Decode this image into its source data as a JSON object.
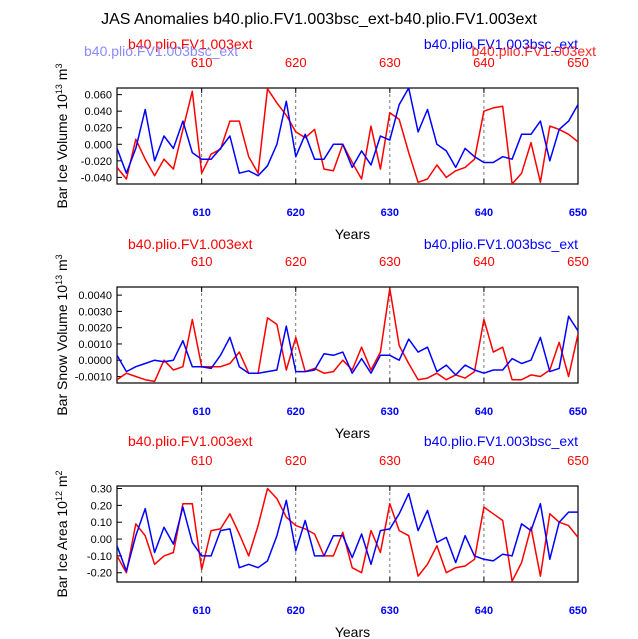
{
  "title": "JAS Anomalies b40.plio.FV1.003bsc_ext-b40.plio.FV1.003ext",
  "colors": {
    "red": "#ff0000",
    "blue": "#0000ff",
    "axis": "#000000",
    "ghost": "#8a8aff"
  },
  "header_overlap": {
    "ghost_left": "b40.plio.FV1.003bsc_ext",
    "ghost_right": "b40.plio.FV1.003ext"
  },
  "chart_data": [
    {
      "type": "line",
      "name": "ice-volume",
      "left_label": "b40.plio.FV1.003ext",
      "right_label": "b40.plio.FV1.003bsc_ext",
      "ylabel": "Bar Ice Volume 10^13 m^3",
      "ylabel_main": "Bar Ice Volume 10",
      "ylabel_sup1": "13",
      "ylabel_mid": " m",
      "ylabel_sup2": "3",
      "xlabel": "Years",
      "xlim": [
        601,
        650
      ],
      "ylim": [
        -0.048,
        0.068
      ],
      "yticks": [
        0.06,
        0.04,
        0.02,
        0.0,
        -0.02,
        -0.04
      ],
      "ytick_labels": [
        "0.060",
        "0.040",
        "0.020",
        "0.000",
        "-0.020",
        "-0.040"
      ],
      "xticks": [
        610,
        620,
        630,
        640,
        650
      ],
      "xtick_labels": [
        "610",
        "620",
        "630",
        "640",
        "650"
      ],
      "vlines": [
        610,
        620,
        630,
        640
      ],
      "x": [
        601,
        602,
        603,
        604,
        605,
        606,
        607,
        608,
        609,
        610,
        611,
        612,
        613,
        614,
        615,
        616,
        617,
        618,
        619,
        620,
        621,
        622,
        623,
        624,
        625,
        626,
        627,
        628,
        629,
        630,
        631,
        632,
        633,
        634,
        635,
        636,
        637,
        638,
        639,
        640,
        641,
        642,
        643,
        644,
        645,
        646,
        647,
        648,
        649,
        650
      ],
      "series": [
        {
          "name": "b40.plio.FV1.003ext",
          "color": "red",
          "values": [
            -0.028,
            -0.042,
            0.006,
            -0.018,
            -0.038,
            -0.018,
            -0.03,
            0.018,
            0.064,
            -0.035,
            -0.012,
            -0.006,
            0.028,
            0.028,
            -0.015,
            -0.035,
            0.067,
            0.05,
            0.035,
            0.015,
            0.008,
            0.018,
            -0.03,
            -0.032,
            0.0,
            -0.022,
            -0.042,
            0.022,
            -0.03,
            0.038,
            0.03,
            -0.01,
            -0.046,
            -0.042,
            -0.025,
            -0.04,
            -0.032,
            -0.028,
            -0.018,
            0.04,
            0.044,
            0.046,
            -0.048,
            -0.035,
            0.002,
            -0.046,
            0.022,
            0.018,
            0.012,
            0.003
          ]
        },
        {
          "name": "b40.plio.FV1.003bsc_ext",
          "color": "blue",
          "values": [
            -0.005,
            -0.035,
            -0.005,
            0.042,
            -0.02,
            0.01,
            -0.005,
            0.028,
            -0.01,
            -0.018,
            -0.018,
            -0.005,
            0.01,
            -0.035,
            -0.032,
            -0.038,
            -0.026,
            0.0,
            0.052,
            -0.015,
            0.012,
            -0.018,
            -0.018,
            0.0,
            0.0,
            -0.028,
            -0.008,
            -0.025,
            0.01,
            0.005,
            0.048,
            0.068,
            0.015,
            0.042,
            0.0,
            -0.008,
            -0.028,
            -0.005,
            -0.015,
            -0.022,
            -0.022,
            -0.015,
            -0.018,
            0.012,
            0.012,
            0.028,
            -0.02,
            0.018,
            0.028,
            0.048
          ]
        }
      ]
    },
    {
      "type": "line",
      "name": "snow-volume",
      "left_label": "b40.plio.FV1.003ext",
      "right_label": "b40.plio.FV1.003bsc_ext",
      "ylabel": "Bar Snow Volume 10^13 m^3",
      "ylabel_main": "Bar Snow Volume 10",
      "ylabel_sup1": "13",
      "ylabel_mid": " m",
      "ylabel_sup2": "3",
      "xlabel": "Years",
      "xlim": [
        601,
        650
      ],
      "ylim": [
        -0.0014,
        0.0045
      ],
      "yticks": [
        0.004,
        0.003,
        0.002,
        0.001,
        0.0,
        -0.001
      ],
      "ytick_labels": [
        "0.0040",
        "0.0030",
        "0.0020",
        "0.0010",
        "0.0000",
        "-0.0010"
      ],
      "xticks": [
        610,
        620,
        630,
        640,
        650
      ],
      "xtick_labels": [
        "610",
        "620",
        "630",
        "640",
        "650"
      ],
      "vlines": [
        610,
        620,
        630,
        640
      ],
      "x": [
        601,
        602,
        603,
        604,
        605,
        606,
        607,
        608,
        609,
        610,
        611,
        612,
        613,
        614,
        615,
        616,
        617,
        618,
        619,
        620,
        621,
        622,
        623,
        624,
        625,
        626,
        627,
        628,
        629,
        630,
        631,
        632,
        633,
        634,
        635,
        636,
        637,
        638,
        639,
        640,
        641,
        642,
        643,
        644,
        645,
        646,
        647,
        648,
        649,
        650
      ],
      "series": [
        {
          "name": "b40.plio.FV1.003ext",
          "color": "red",
          "values": [
            -0.0012,
            -0.0008,
            -0.001,
            -0.0012,
            -0.0013,
            0.0,
            -0.0006,
            -0.0004,
            0.0025,
            -0.0004,
            -0.0004,
            -0.0004,
            -0.0002,
            0.0005,
            -0.0008,
            -0.0008,
            0.0026,
            0.0022,
            -0.0006,
            0.0014,
            -0.0007,
            -0.0005,
            -0.0008,
            -0.0007,
            0.0,
            -0.0006,
            0.0008,
            -0.0006,
            0.0005,
            0.0044,
            0.0009,
            -0.0002,
            -0.0012,
            -0.0011,
            -0.0008,
            -0.0012,
            -0.0009,
            -0.0011,
            -0.0007,
            0.0025,
            0.0005,
            0.0008,
            -0.0012,
            -0.0012,
            -0.0009,
            -0.001,
            -0.0006,
            0.0011,
            -0.001,
            0.0016
          ]
        },
        {
          "name": "b40.plio.FV1.003bsc_ext",
          "color": "blue",
          "values": [
            0.0003,
            -0.0007,
            -0.0004,
            -0.0002,
            0.0,
            -0.0001,
            0.0,
            0.0012,
            -0.0004,
            -0.0004,
            -0.0005,
            0.0003,
            0.0014,
            -0.0004,
            -0.0008,
            -0.0008,
            -0.0007,
            -0.0006,
            0.0021,
            -0.0007,
            -0.0007,
            -0.0006,
            0.0004,
            0.0003,
            0.0005,
            -0.0008,
            0.0001,
            -0.0008,
            0.0003,
            0.0003,
            0.0,
            0.0013,
            0.0005,
            0.0008,
            -0.0007,
            -0.0003,
            -0.0009,
            -0.0003,
            -0.0006,
            -0.0008,
            -0.0006,
            -0.0006,
            0.0001,
            -0.0002,
            0.0,
            0.0014,
            -0.0007,
            -0.0005,
            0.0027,
            0.0018
          ]
        }
      ]
    },
    {
      "type": "line",
      "name": "ice-area",
      "left_label": "b40.plio.FV1.003ext",
      "right_label": "b40.plio.FV1.003bsc_ext",
      "ylabel": "Bar Ice Area 10^12 m^2",
      "ylabel_main": "Bar Ice Area 10",
      "ylabel_sup1": "12",
      "ylabel_mid": " m",
      "ylabel_sup2": "2",
      "xlabel": "Years",
      "xlim": [
        601,
        650
      ],
      "ylim": [
        -0.255,
        0.315
      ],
      "yticks": [
        0.3,
        0.2,
        0.1,
        0.0,
        -0.1,
        -0.2
      ],
      "ytick_labels": [
        "0.30",
        "0.20",
        "0.10",
        "0.00",
        "-0.10",
        "-0.20"
      ],
      "xticks": [
        610,
        620,
        630,
        640,
        650
      ],
      "xtick_labels": [
        "610",
        "620",
        "630",
        "640",
        "650"
      ],
      "vlines": [
        610,
        620,
        630,
        640
      ],
      "x": [
        601,
        602,
        603,
        604,
        605,
        606,
        607,
        608,
        609,
        610,
        611,
        612,
        613,
        614,
        615,
        616,
        617,
        618,
        619,
        620,
        621,
        622,
        623,
        624,
        625,
        626,
        627,
        628,
        629,
        630,
        631,
        632,
        633,
        634,
        635,
        636,
        637,
        638,
        639,
        640,
        641,
        642,
        643,
        644,
        645,
        646,
        647,
        648,
        649,
        650
      ],
      "series": [
        {
          "name": "b40.plio.FV1.003ext",
          "color": "red",
          "values": [
            -0.1,
            -0.2,
            0.09,
            0.02,
            -0.15,
            -0.1,
            -0.08,
            0.21,
            0.21,
            -0.18,
            0.05,
            0.06,
            0.15,
            0.03,
            -0.1,
            0.08,
            0.3,
            0.24,
            0.13,
            0.08,
            0.06,
            0.03,
            -0.1,
            -0.1,
            0.04,
            -0.17,
            -0.2,
            0.05,
            -0.08,
            0.21,
            0.05,
            0.02,
            -0.22,
            -0.15,
            -0.04,
            -0.2,
            -0.17,
            -0.16,
            -0.12,
            0.19,
            0.15,
            0.11,
            -0.25,
            -0.14,
            0.07,
            -0.22,
            0.15,
            0.1,
            0.08,
            0.01
          ]
        },
        {
          "name": "b40.plio.FV1.003bsc_ext",
          "color": "blue",
          "values": [
            -0.04,
            -0.19,
            0.02,
            0.18,
            -0.08,
            0.07,
            -0.03,
            0.19,
            -0.02,
            -0.1,
            -0.1,
            0.05,
            0.06,
            -0.17,
            -0.15,
            -0.17,
            -0.13,
            0.02,
            0.23,
            -0.07,
            0.11,
            -0.1,
            -0.1,
            0.02,
            0.02,
            -0.11,
            0.03,
            -0.15,
            0.05,
            0.06,
            0.15,
            0.27,
            0.05,
            0.17,
            -0.02,
            0.01,
            -0.14,
            0.02,
            -0.1,
            -0.12,
            -0.13,
            -0.09,
            -0.1,
            0.09,
            0.05,
            0.21,
            -0.12,
            0.1,
            0.16,
            0.16
          ]
        }
      ]
    }
  ]
}
